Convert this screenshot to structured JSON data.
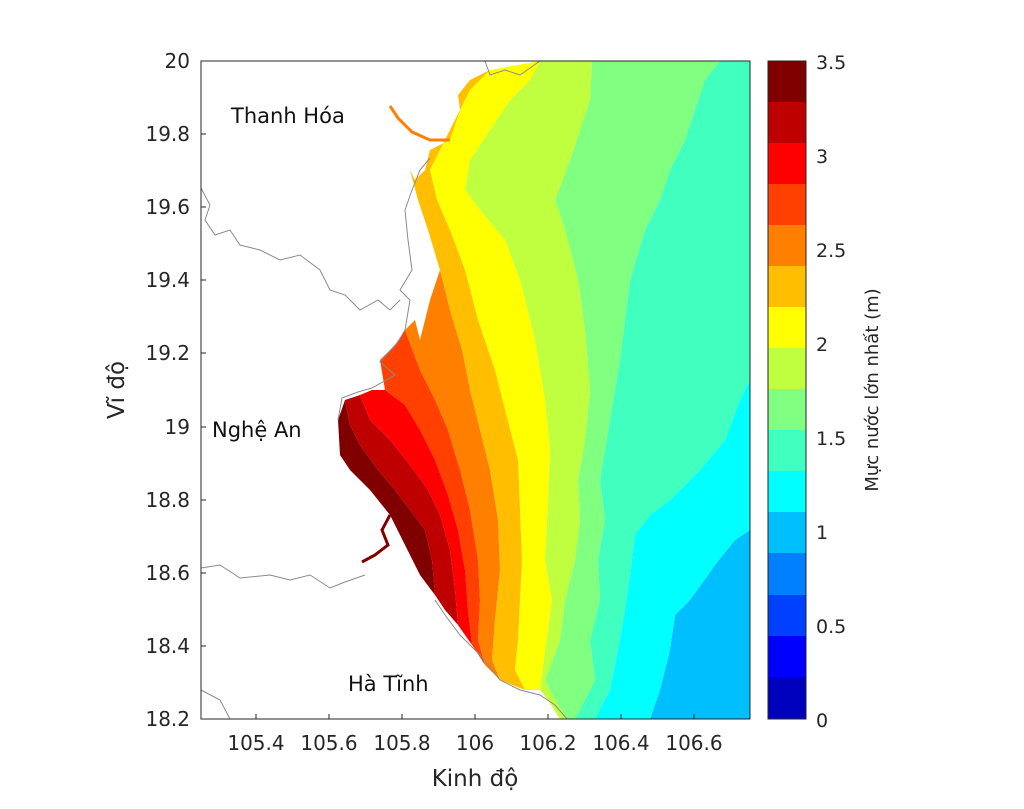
{
  "axes": {
    "xlabel": "Kinh độ",
    "ylabel": "Vĩ độ",
    "xlim": [
      105.25,
      106.75
    ],
    "ylim": [
      18.2,
      20.0
    ],
    "xticks": [
      "105.4",
      "105.6",
      "105.8",
      "106",
      "106.2",
      "106.4",
      "106.6"
    ],
    "yticks": [
      "20",
      "19.8",
      "19.6",
      "19.4",
      "19.2",
      "19",
      "18.8",
      "18.6",
      "18.4",
      "18.2"
    ]
  },
  "regions": {
    "thanh_hoa": "Thanh Hóa",
    "nghe_an": "Nghệ An",
    "ha_tinh": "Hà Tĩnh"
  },
  "colorbar": {
    "title": "Mực nước lớn nhất (m)",
    "range": [
      0,
      3.5
    ],
    "ticks": [
      "0",
      "0.5",
      "1",
      "1.5",
      "2",
      "2.5",
      "3",
      "3.5"
    ],
    "colormap": "jet",
    "levels": 14
  },
  "chart_data": {
    "type": "filled-contour-map",
    "variable": "maximum water level",
    "unit": "m",
    "peak_value_approx": 3.5,
    "peak_location_approx": {
      "lon": 105.7,
      "lat": 18.95
    }
  }
}
